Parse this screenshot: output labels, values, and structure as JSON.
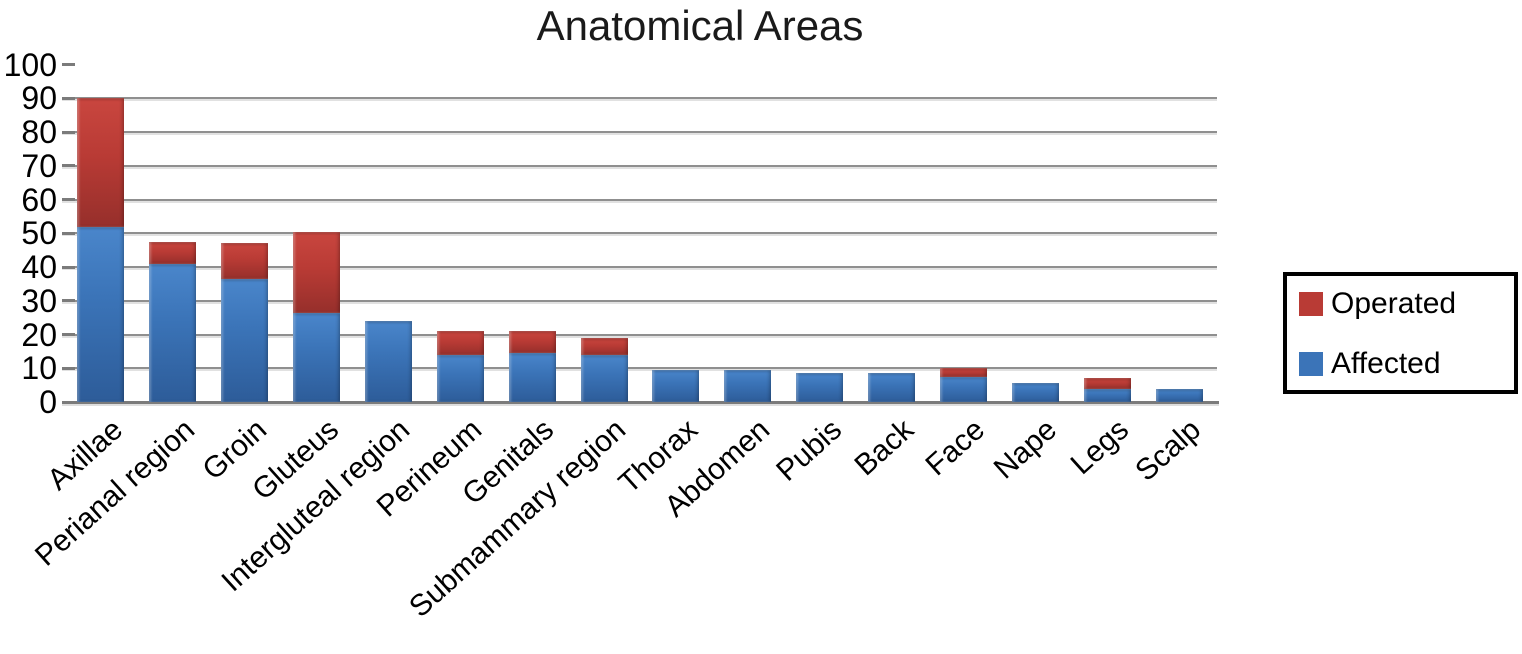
{
  "chart_data": {
    "type": "bar",
    "stacked": true,
    "title": "Anatomical Areas",
    "xlabel": "",
    "ylabel": "",
    "ylim": [
      0,
      100
    ],
    "yticks": [
      0,
      10,
      20,
      30,
      40,
      50,
      60,
      70,
      80,
      90,
      100
    ],
    "grid": true,
    "legend_position": "right",
    "categories": [
      "Axillae",
      "Perianal region",
      "Groin",
      "Gluteus",
      "Intergluteal region",
      "Perineum",
      "Genitals",
      "Submammary region",
      "Thorax",
      "Abdomen",
      "Pubis",
      "Back",
      "Face",
      "Nape",
      "Legs",
      "Scalp"
    ],
    "series": [
      {
        "name": "Affected",
        "color": "#3B74B8",
        "values": [
          52,
          41,
          36.5,
          26.5,
          24,
          14,
          14.5,
          14,
          9.5,
          9.5,
          8.5,
          8.5,
          7.5,
          5.5,
          4,
          4
        ]
      },
      {
        "name": "Operated",
        "color": "#B93B35",
        "values": [
          38,
          6.5,
          10.5,
          24,
          0,
          7,
          6.5,
          5,
          0,
          0,
          0,
          0,
          2.5,
          0,
          3,
          0
        ]
      }
    ]
  },
  "colors": {
    "gridline": "#8F8F8F",
    "axis": "#7B7B7B",
    "text": "#000000",
    "background": "#FFFFFF",
    "legend_border": "#000000"
  }
}
